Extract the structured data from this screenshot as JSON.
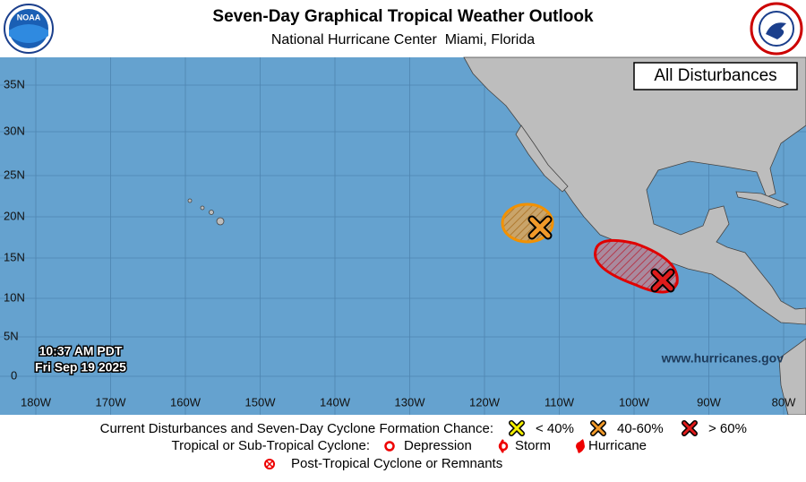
{
  "header": {
    "title": "Seven-Day Graphical Tropical Weather Outlook",
    "subtitle": "National Hurricane Center  Miami, Florida",
    "noaa_logo": "NOAA"
  },
  "map": {
    "panel_label": "All Disturbances",
    "lat_labels": [
      "35N",
      "30N",
      "25N",
      "20N",
      "15N",
      "10N",
      "5N",
      "0"
    ],
    "lon_labels": [
      "180W",
      "170W",
      "160W",
      "150W",
      "140W",
      "130W",
      "120W",
      "110W",
      "100W",
      "90W",
      "80W"
    ],
    "timestamp": [
      "10:37 AM PDT",
      "Fri Sep 19 2025"
    ],
    "website": "www.hurricanes.gov"
  },
  "legend": {
    "disturbances": {
      "label": "Current Disturbances and Seven-Day Cyclone Formation Chance:",
      "items": [
        "< 40%",
        "40-60%",
        "> 60%"
      ]
    },
    "cyclones": {
      "label": "Tropical or Sub-Tropical Cyclone:",
      "items": [
        "Depression",
        "Storm",
        "Hurricane"
      ]
    },
    "post_tropical": "Post-Tropical Cyclone or Remnants"
  }
}
